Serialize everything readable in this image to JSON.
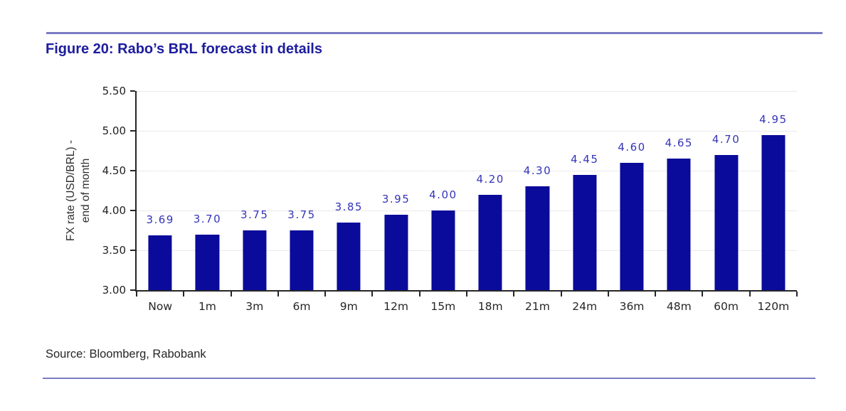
{
  "figure": {
    "title": "Figure 20: Rabo’s BRL forecast in details",
    "source": "Source: Bloomberg, Rabobank"
  },
  "chart_data": {
    "type": "bar",
    "title": "Figure 20: Rabo’s BRL forecast in details",
    "categories": [
      "Now",
      "1m",
      "3m",
      "6m",
      "9m",
      "12m",
      "15m",
      "18m",
      "21m",
      "24m",
      "36m",
      "48m",
      "60m",
      "120m"
    ],
    "values": [
      3.69,
      3.7,
      3.75,
      3.75,
      3.85,
      3.95,
      4.0,
      4.2,
      4.3,
      4.45,
      4.6,
      4.65,
      4.7,
      4.95
    ],
    "value_labels": [
      "3.69",
      "3.70",
      "3.75",
      "3.75",
      "3.85",
      "3.95",
      "4.00",
      "4.20",
      "4.30",
      "4.45",
      "4.60",
      "4.65",
      "4.70",
      "4.95"
    ],
    "xlabel": "",
    "ylabel": "FX rate (USD/BRL) - end of month",
    "ylabel_lines": [
      "FX rate (USD/BRL)  -",
      "end of month"
    ],
    "ylim": [
      3.0,
      5.5
    ],
    "ytick_labels": [
      "3.00",
      "3.50",
      "4.00",
      "4.50",
      "5.00",
      "5.50"
    ],
    "grid": "horizontal-dotted",
    "legend_position": "none",
    "colors": {
      "bar": "#0a0a9b",
      "value_label": "#3434b8",
      "title": "#1c1c9e",
      "rule": "#7b7bc6",
      "gridline": "#d6d6d6",
      "axis": "#262626"
    },
    "source": "Source: Bloomberg, Rabobank"
  }
}
